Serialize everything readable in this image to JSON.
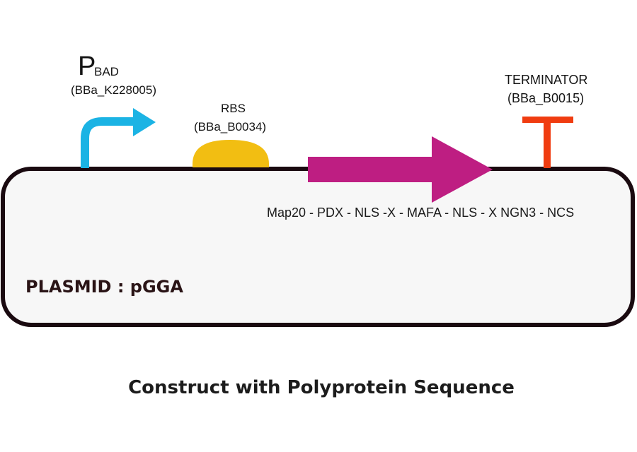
{
  "promoter": {
    "letter": "P",
    "subscript": "BAD",
    "part_id": "(BBa_K228005)",
    "color": "#1BB3E4",
    "icon": "promoter-bent-arrow"
  },
  "rbs": {
    "name": "RBS",
    "part_id": "(BBa_B0034)",
    "color": "#F2BE12",
    "icon": "rbs-semicircle"
  },
  "cds": {
    "sequence": "Map20 - PDX - NLS -X - MAFA - NLS - X NGN3 - NCS",
    "color": "#BE1E82",
    "icon": "cds-arrow"
  },
  "terminator": {
    "name": "TERMINATOR",
    "part_id": "(BBa_B0015)",
    "color": "#F03C10",
    "icon": "terminator-t"
  },
  "plasmid": {
    "label": "PLASMID : pGGA",
    "fill": "#F7F7F7",
    "stroke": "#1A0A10"
  },
  "caption": "Construct with Polyprotein Sequence"
}
